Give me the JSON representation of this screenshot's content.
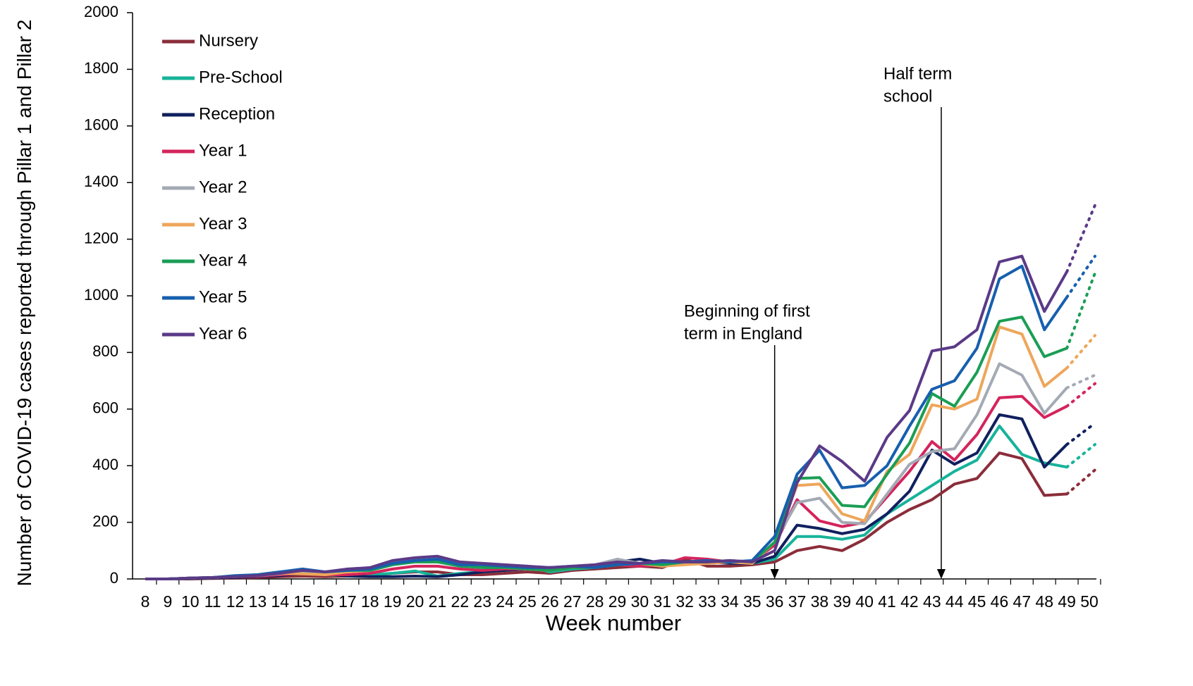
{
  "chart_data": {
    "type": "line",
    "y_label": "Number of COVID-19 cases reported through Pillar 1 and Pillar 2",
    "x_label": "Week number",
    "categories": [
      8,
      9,
      10,
      11,
      12,
      13,
      14,
      15,
      16,
      17,
      18,
      19,
      20,
      21,
      22,
      23,
      24,
      25,
      26,
      27,
      28,
      29,
      30,
      31,
      32,
      33,
      34,
      35,
      36,
      37,
      38,
      39,
      40,
      41,
      42,
      43,
      44,
      45,
      46,
      47,
      48,
      49,
      50
    ],
    "ylim": [
      0,
      2000
    ],
    "yticks": [
      0,
      200,
      400,
      600,
      800,
      1000,
      1200,
      1400,
      1600,
      1800,
      2000
    ],
    "legend": "top-left",
    "dotted_last_segment": true,
    "annotations": [
      {
        "lines": [
          "Beginning of first",
          "term in England"
        ]
      },
      {
        "lines": [
          "Half term",
          "school"
        ]
      }
    ],
    "series": [
      {
        "name": "Nursery",
        "color": "#8b2d3a",
        "values": [
          0,
          0,
          0,
          2,
          3,
          5,
          8,
          10,
          8,
          10,
          12,
          20,
          25,
          25,
          15,
          15,
          20,
          25,
          20,
          30,
          35,
          40,
          45,
          40,
          70,
          45,
          45,
          50,
          60,
          100,
          115,
          100,
          140,
          200,
          245,
          280,
          335,
          355,
          445,
          425,
          295,
          300,
          385
        ]
      },
      {
        "name": "Pre-School",
        "color": "#17b39a",
        "values": [
          0,
          0,
          2,
          5,
          8,
          10,
          15,
          20,
          15,
          12,
          15,
          20,
          28,
          10,
          20,
          25,
          30,
          45,
          25,
          35,
          40,
          50,
          55,
          60,
          60,
          55,
          60,
          55,
          70,
          150,
          150,
          140,
          155,
          230,
          280,
          330,
          380,
          420,
          540,
          440,
          410,
          395,
          475
        ]
      },
      {
        "name": "Reception",
        "color": "#10205e",
        "values": [
          0,
          0,
          2,
          3,
          5,
          8,
          12,
          20,
          18,
          10,
          8,
          8,
          10,
          8,
          15,
          25,
          30,
          35,
          40,
          40,
          45,
          60,
          70,
          55,
          60,
          60,
          55,
          55,
          80,
          190,
          178,
          160,
          175,
          230,
          310,
          455,
          405,
          445,
          580,
          565,
          395,
          475,
          550
        ]
      },
      {
        "name": "Year 1",
        "color": "#d4245c",
        "values": [
          0,
          0,
          3,
          5,
          8,
          10,
          15,
          20,
          15,
          15,
          20,
          35,
          45,
          45,
          35,
          30,
          35,
          35,
          30,
          40,
          45,
          50,
          45,
          50,
          75,
          70,
          60,
          60,
          120,
          280,
          205,
          185,
          200,
          290,
          380,
          485,
          420,
          510,
          640,
          645,
          570,
          610,
          690
        ]
      },
      {
        "name": "Year 2",
        "color": "#a3aab4",
        "values": [
          0,
          0,
          3,
          5,
          10,
          12,
          18,
          25,
          20,
          25,
          30,
          50,
          65,
          70,
          55,
          45,
          45,
          40,
          35,
          45,
          50,
          70,
          55,
          45,
          55,
          60,
          60,
          55,
          130,
          270,
          285,
          200,
          195,
          300,
          405,
          450,
          460,
          580,
          760,
          720,
          585,
          675,
          720
        ]
      },
      {
        "name": "Year 3",
        "color": "#eea65b",
        "values": [
          0,
          0,
          3,
          5,
          8,
          12,
          20,
          18,
          15,
          25,
          30,
          55,
          60,
          60,
          50,
          45,
          40,
          35,
          30,
          40,
          40,
          50,
          55,
          45,
          50,
          55,
          60,
          55,
          130,
          330,
          335,
          230,
          205,
          380,
          440,
          615,
          600,
          635,
          890,
          865,
          680,
          745,
          860
        ]
      },
      {
        "name": "Year 4",
        "color": "#1a9e55",
        "values": [
          0,
          0,
          3,
          5,
          10,
          15,
          25,
          30,
          25,
          30,
          30,
          50,
          60,
          60,
          45,
          40,
          40,
          35,
          30,
          40,
          40,
          50,
          55,
          50,
          60,
          60,
          65,
          60,
          130,
          355,
          358,
          260,
          255,
          370,
          480,
          655,
          610,
          730,
          910,
          925,
          785,
          815,
          1080
        ]
      },
      {
        "name": "Year 5",
        "color": "#175fae",
        "values": [
          0,
          0,
          3,
          5,
          12,
          15,
          25,
          35,
          25,
          30,
          35,
          55,
          65,
          70,
          50,
          50,
          45,
          40,
          40,
          45,
          40,
          50,
          55,
          60,
          60,
          65,
          60,
          65,
          150,
          370,
          455,
          322,
          330,
          400,
          540,
          670,
          700,
          815,
          1060,
          1105,
          880,
          995,
          1140
        ]
      },
      {
        "name": "Year 6",
        "color": "#5b3a87",
        "values": [
          0,
          0,
          3,
          5,
          8,
          12,
          20,
          30,
          25,
          35,
          40,
          65,
          75,
          80,
          60,
          55,
          50,
          45,
          40,
          45,
          50,
          60,
          55,
          65,
          60,
          60,
          65,
          60,
          100,
          340,
          470,
          415,
          345,
          500,
          595,
          805,
          820,
          880,
          1120,
          1140,
          945,
          1085,
          1320
        ]
      }
    ]
  }
}
